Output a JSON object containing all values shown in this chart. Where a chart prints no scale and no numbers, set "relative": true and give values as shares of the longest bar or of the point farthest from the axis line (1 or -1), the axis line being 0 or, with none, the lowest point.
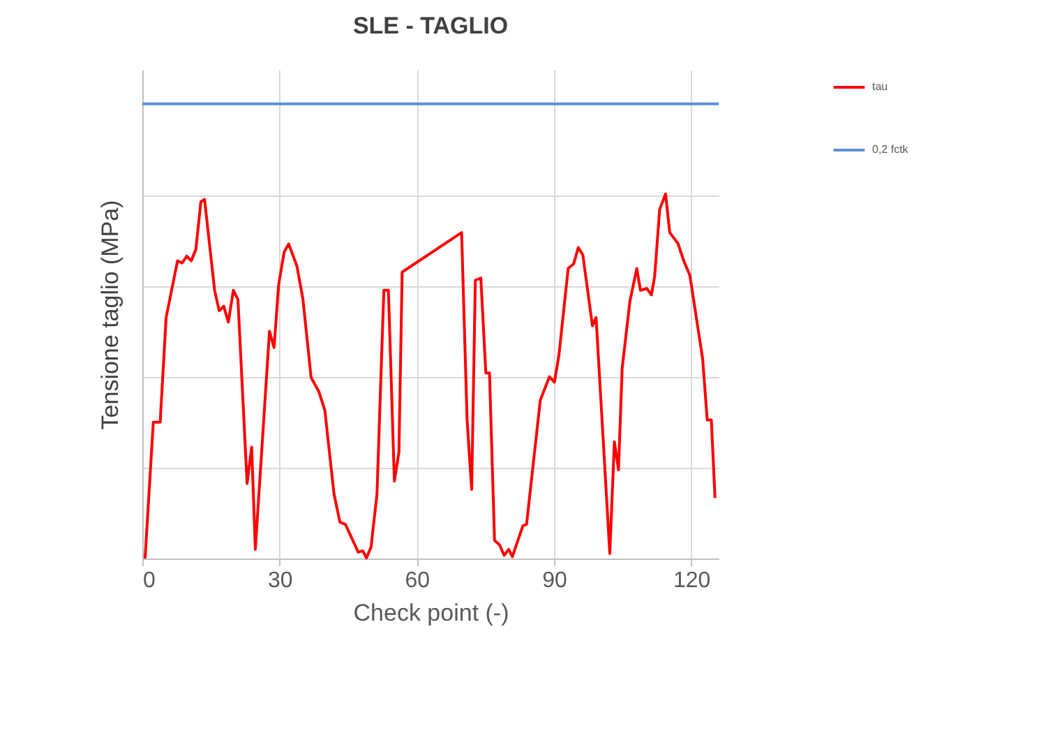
{
  "chart_data": {
    "type": "line",
    "title": "SLE - TAGLIO",
    "xlabel": "Check point (-)",
    "ylabel": "Tensione taglio (MPa)",
    "relative": true,
    "xlim": [
      0,
      126
    ],
    "xticks": [
      0,
      30,
      60,
      90,
      120
    ],
    "grid": true,
    "legend": "right",
    "marker": "none",
    "line_style": "solid",
    "series": [
      {
        "name": "tau",
        "color": "#ff0000",
        "x": [
          0.6,
          2.4,
          3.9,
          5.2,
          7.7,
          8.7,
          9.7,
          10.7,
          11.7,
          12.8,
          13.6,
          15.8,
          16.8,
          17.8,
          18.8,
          19.9,
          20.9,
          22.9,
          23.9,
          24.7,
          27.8,
          28.8,
          29.8,
          31.0,
          32.0,
          33.8,
          35.1,
          36.9,
          38.6,
          39.9,
          41.9,
          43.2,
          44.4,
          47.2,
          48.2,
          49.0,
          50.0,
          51.3,
          52.8,
          53.8,
          55.1,
          56.1,
          56.8,
          69.8,
          71.0,
          72.0,
          72.8,
          74.0,
          75.1,
          75.9,
          77.0,
          78.1,
          79.1,
          80.1,
          80.9,
          83.2,
          84.0,
          87.0,
          89.0,
          90.1,
          91.1,
          93.1,
          94.3,
          95.3,
          96.3,
          98.4,
          99.2,
          102.2,
          103.2,
          104.1,
          104.9,
          106.6,
          108.1,
          108.9,
          110.3,
          111.3,
          112.0,
          113.1,
          114.4,
          115.3,
          117.1,
          118.4,
          119.7,
          122.5,
          123.5,
          124.4,
          125.2
        ],
        "values": [
          0,
          0.3,
          0.3,
          0.53,
          0.655,
          0.65,
          0.665,
          0.655,
          0.68,
          0.785,
          0.79,
          0.59,
          0.545,
          0.555,
          0.52,
          0.59,
          0.57,
          0.165,
          0.245,
          0.02,
          0.5,
          0.464,
          0.602,
          0.674,
          0.692,
          0.643,
          0.571,
          0.398,
          0.367,
          0.326,
          0.142,
          0.08,
          0.075,
          0.014,
          0.017,
          0.001,
          0.025,
          0.142,
          0.59,
          0.59,
          0.17,
          0.234,
          0.63,
          0.717,
          0.305,
          0.152,
          0.612,
          0.617,
          0.408,
          0.408,
          0.04,
          0.03,
          0.007,
          0.02,
          0.004,
          0.072,
          0.075,
          0.348,
          0.4,
          0.388,
          0.449,
          0.638,
          0.648,
          0.684,
          0.668,
          0.512,
          0.53,
          0.011,
          0.257,
          0.195,
          0.418,
          0.566,
          0.638,
          0.59,
          0.594,
          0.58,
          0.62,
          0.768,
          0.802,
          0.717,
          0.693,
          0.654,
          0.623,
          0.439,
          0.305,
          0.305,
          0.133
        ]
      },
      {
        "name": "0,2 fctk",
        "color": "#5b8fd6",
        "x": [
          0,
          126
        ],
        "values": [
          1,
          1
        ]
      }
    ]
  }
}
